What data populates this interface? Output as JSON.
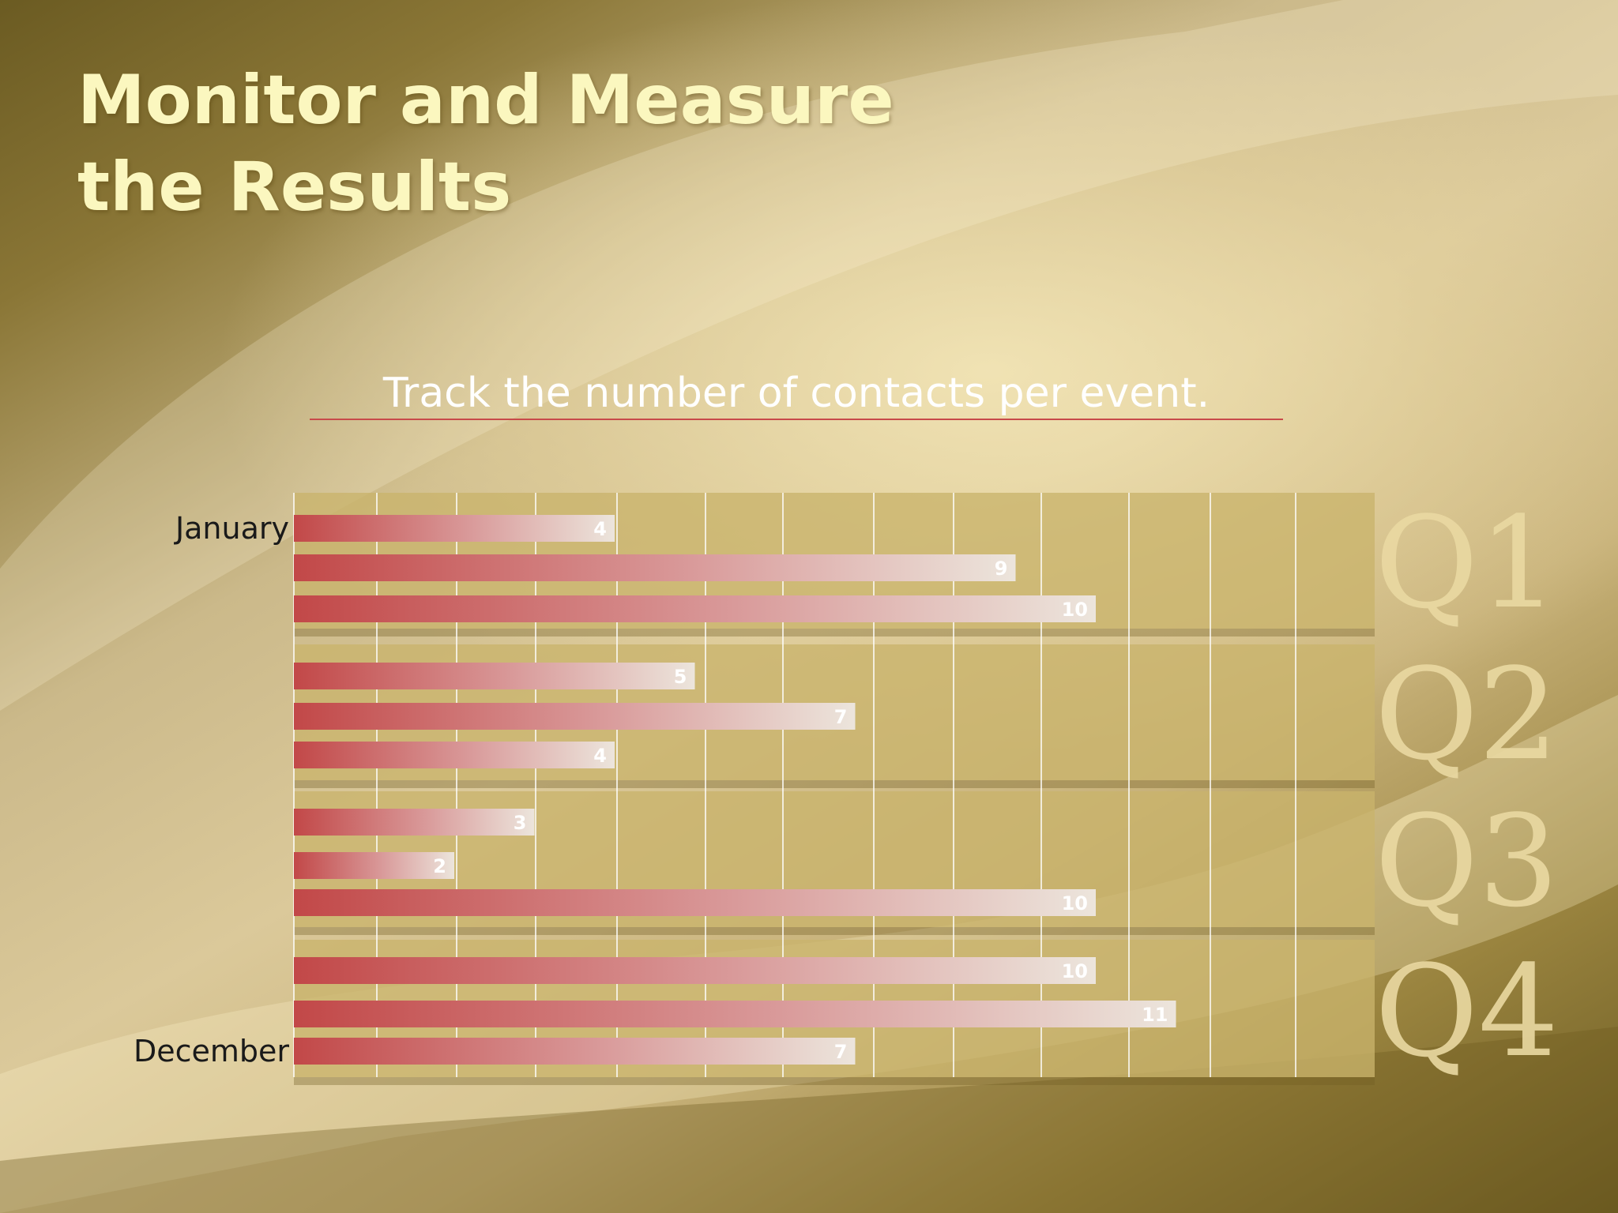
{
  "slide": {
    "title": "Monitor and Measure the Results",
    "subtitle": "Track the number of contacts per event."
  },
  "colors": {
    "title": "#fbf7bf",
    "bar_start": "#c24848",
    "bar_end": "#ece5dc",
    "panel": "#c9b46c",
    "quarter_label": "#ead9a2"
  },
  "chart_data": {
    "type": "bar",
    "orientation": "horizontal",
    "categories": [
      "January",
      "",
      "",
      "",
      "",
      "",
      "",
      "",
      "",
      "",
      "",
      "December"
    ],
    "values": [
      4,
      9,
      10,
      5,
      7,
      4,
      3,
      2,
      10,
      10,
      11,
      7
    ],
    "data_labels": [
      "4",
      "9",
      "10",
      "5",
      "7",
      "4",
      "3",
      "2",
      "10",
      "10",
      "11",
      "7"
    ],
    "groups": [
      {
        "label": "Q1",
        "start": 0,
        "end": 2
      },
      {
        "label": "Q2",
        "start": 3,
        "end": 5
      },
      {
        "label": "Q3",
        "start": 6,
        "end": 8
      },
      {
        "label": "Q4",
        "start": 9,
        "end": 11
      }
    ],
    "xlim": [
      0,
      13.5
    ],
    "gridlines": true,
    "legend": false
  }
}
